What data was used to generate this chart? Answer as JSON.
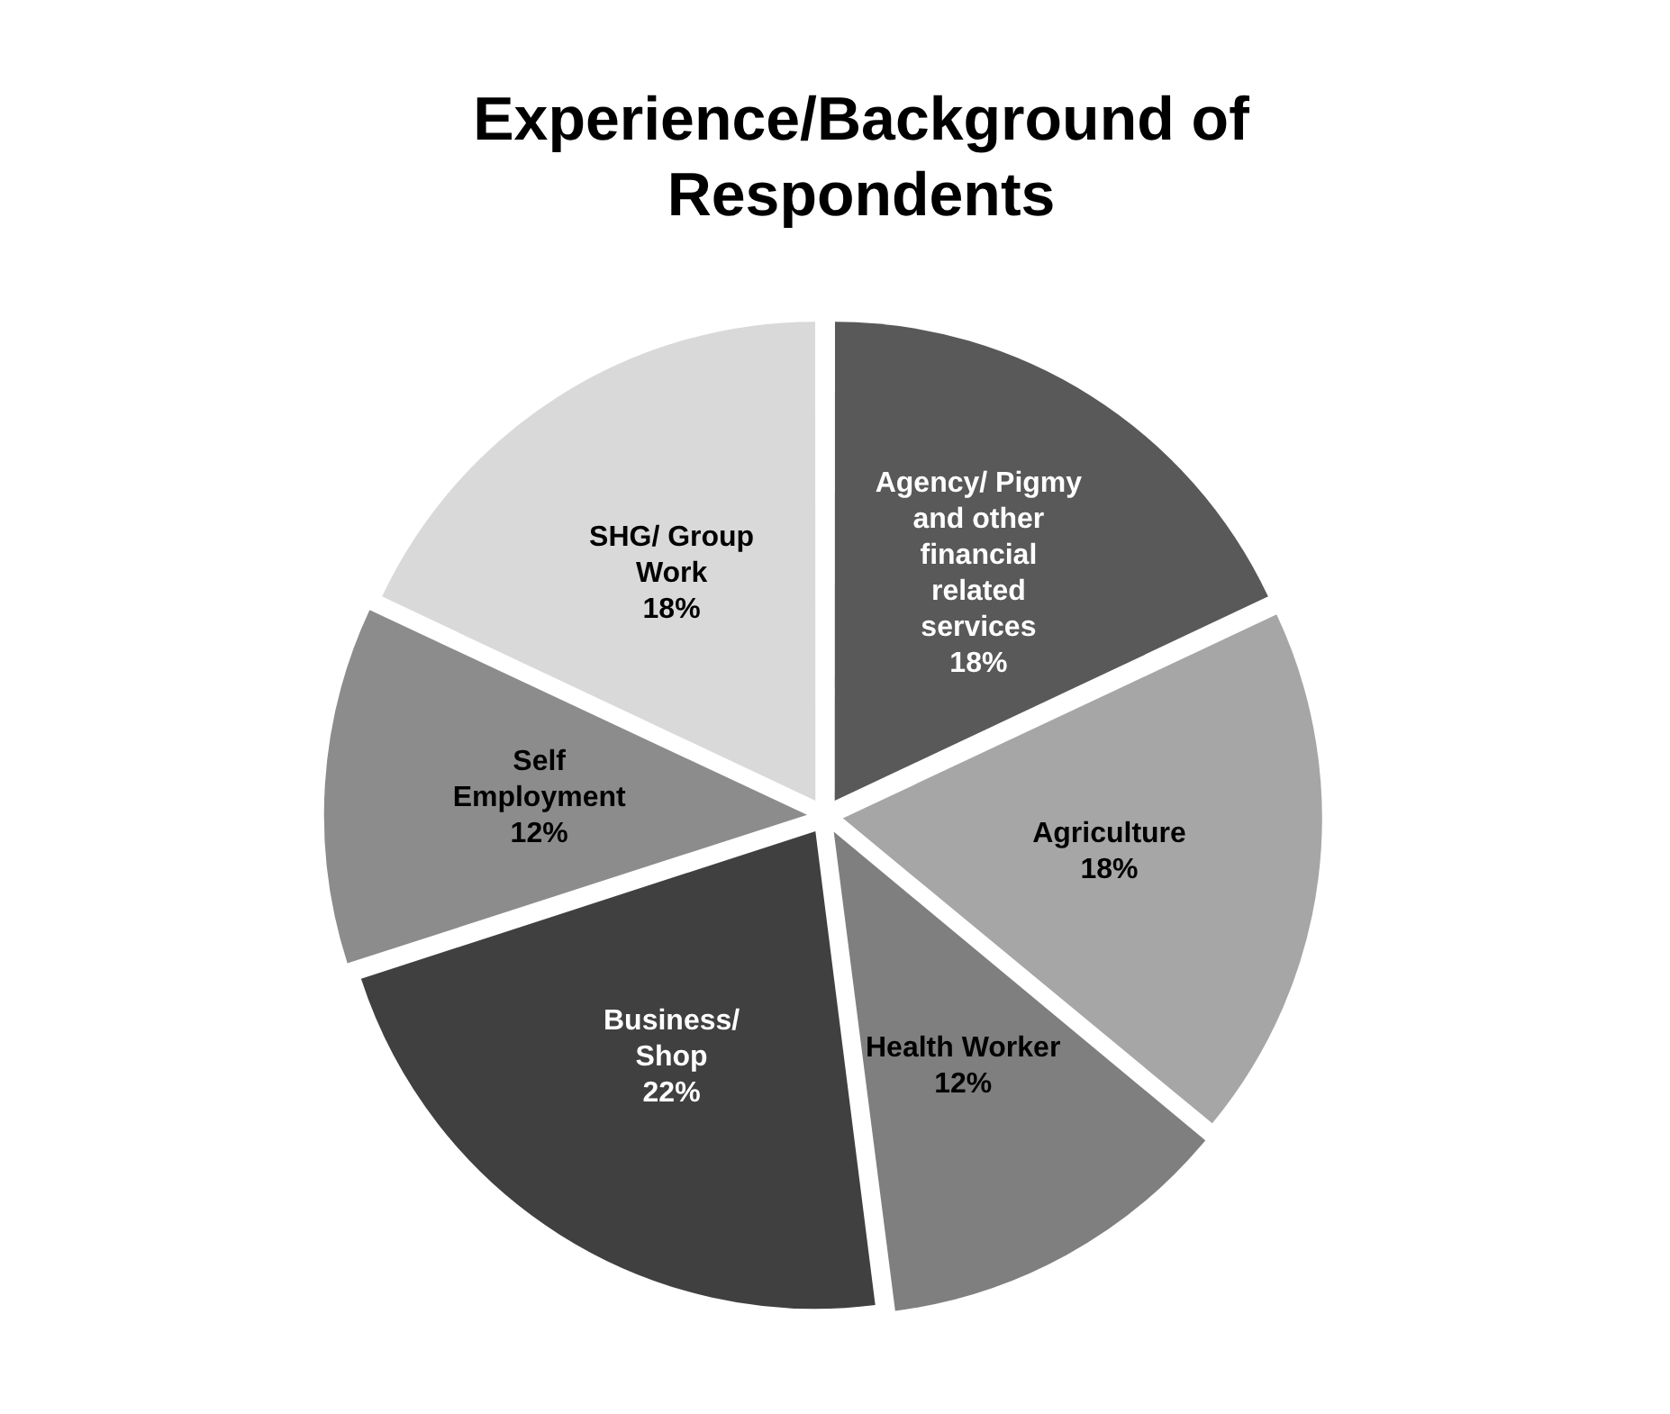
{
  "chart_data": {
    "type": "pie",
    "title": "Experience/Background of Respondents",
    "categories": [
      "Agency/ Pigmy and other financial related services",
      "Agriculture",
      "Health Worker",
      "Business/ Shop",
      "Self Employment",
      "SHG/ Group Work"
    ],
    "values": [
      18,
      18,
      12,
      22,
      12,
      18
    ],
    "colors": [
      "#595959",
      "#a6a6a6",
      "#7f7f7f",
      "#404040",
      "#8c8c8c",
      "#d9d9d9"
    ],
    "value_labels": [
      "18%",
      "18%",
      "12%",
      "22%",
      "12%",
      "18%"
    ],
    "legend": false
  }
}
